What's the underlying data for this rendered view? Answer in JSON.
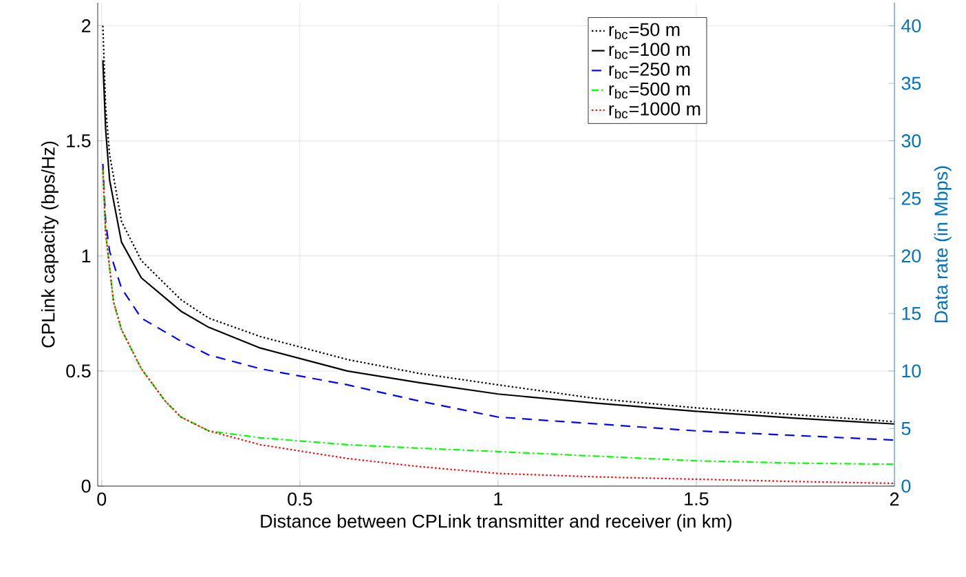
{
  "chart_data": {
    "type": "line",
    "xlabel": "Distance between CPLink transmitter and receiver (in km)",
    "ylabel": "CPLink capacity (bps/Hz)",
    "y2label": "Data rate (in Mbps)",
    "xlim": [
      -0.01,
      2
    ],
    "xticks": [
      0,
      0.5,
      1,
      1.5,
      2
    ],
    "ylim": [
      0,
      2.1
    ],
    "yticks": [
      0,
      0.5,
      1,
      1.5,
      2
    ],
    "y2lim": [
      0,
      42
    ],
    "y2ticks": [
      0,
      5,
      10,
      15,
      20,
      25,
      30,
      35,
      40
    ],
    "grid": true,
    "legend": "top",
    "series": [
      {
        "name": "r$_{bc}$=50 m",
        "color": "#000000",
        "line_style": "dotted",
        "x": [
          0.003,
          0.01,
          0.02,
          0.05,
          0.1,
          0.2,
          0.27,
          0.4,
          0.62,
          0.8,
          1,
          1.25,
          1.5,
          1.75,
          2
        ],
        "values": [
          2.0,
          1.65,
          1.44,
          1.15,
          0.98,
          0.81,
          0.73,
          0.65,
          0.55,
          0.49,
          0.44,
          0.38,
          0.34,
          0.31,
          0.28
        ]
      },
      {
        "name": "r$_{bc}$=100 m",
        "color": "#000000",
        "line_style": "solid",
        "x": [
          0.003,
          0.01,
          0.02,
          0.05,
          0.1,
          0.2,
          0.27,
          0.4,
          0.62,
          0.8,
          1,
          1.25,
          1.5,
          1.75,
          2
        ],
        "values": [
          1.85,
          1.55,
          1.33,
          1.06,
          0.905,
          0.76,
          0.69,
          0.6,
          0.5,
          0.45,
          0.4,
          0.36,
          0.325,
          0.295,
          0.27
        ]
      },
      {
        "name": "r$_{bc}$=250 m",
        "color": "#0000ff",
        "line_style": "dashed",
        "x": [
          0.003,
          0.01,
          0.02,
          0.05,
          0.1,
          0.2,
          0.27,
          0.4,
          0.62,
          0.8,
          1,
          1.25,
          1.5,
          1.75,
          2
        ],
        "values": [
          1.4,
          1.15,
          1.02,
          0.86,
          0.73,
          0.63,
          0.57,
          0.51,
          0.44,
          0.37,
          0.3,
          0.27,
          0.24,
          0.22,
          0.2
        ]
      },
      {
        "name": "r$_{bc}$=500 m",
        "color": "#00ff00",
        "line_style": "dashdot",
        "x": [
          0.003,
          0.01,
          0.03,
          0.05,
          0.1,
          0.16,
          0.2,
          0.27,
          0.4,
          0.62,
          0.8,
          1,
          1.25,
          1.5,
          1.75,
          2
        ],
        "values": [
          1.38,
          1.1,
          0.8,
          0.68,
          0.51,
          0.37,
          0.3,
          0.24,
          0.21,
          0.18,
          0.165,
          0.15,
          0.13,
          0.11,
          0.1,
          0.095
        ]
      },
      {
        "name": "r$_{bc}$=1000 m",
        "color": "#ff0000",
        "line_style": "dotted",
        "x": [
          0.003,
          0.01,
          0.03,
          0.05,
          0.1,
          0.16,
          0.2,
          0.27,
          0.4,
          0.62,
          0.8,
          1,
          1.25,
          1.5,
          1.75,
          2
        ],
        "values": [
          1.38,
          1.1,
          0.8,
          0.68,
          0.51,
          0.37,
          0.3,
          0.24,
          0.18,
          0.12,
          0.085,
          0.055,
          0.04,
          0.03,
          0.02,
          0.012
        ]
      }
    ]
  }
}
